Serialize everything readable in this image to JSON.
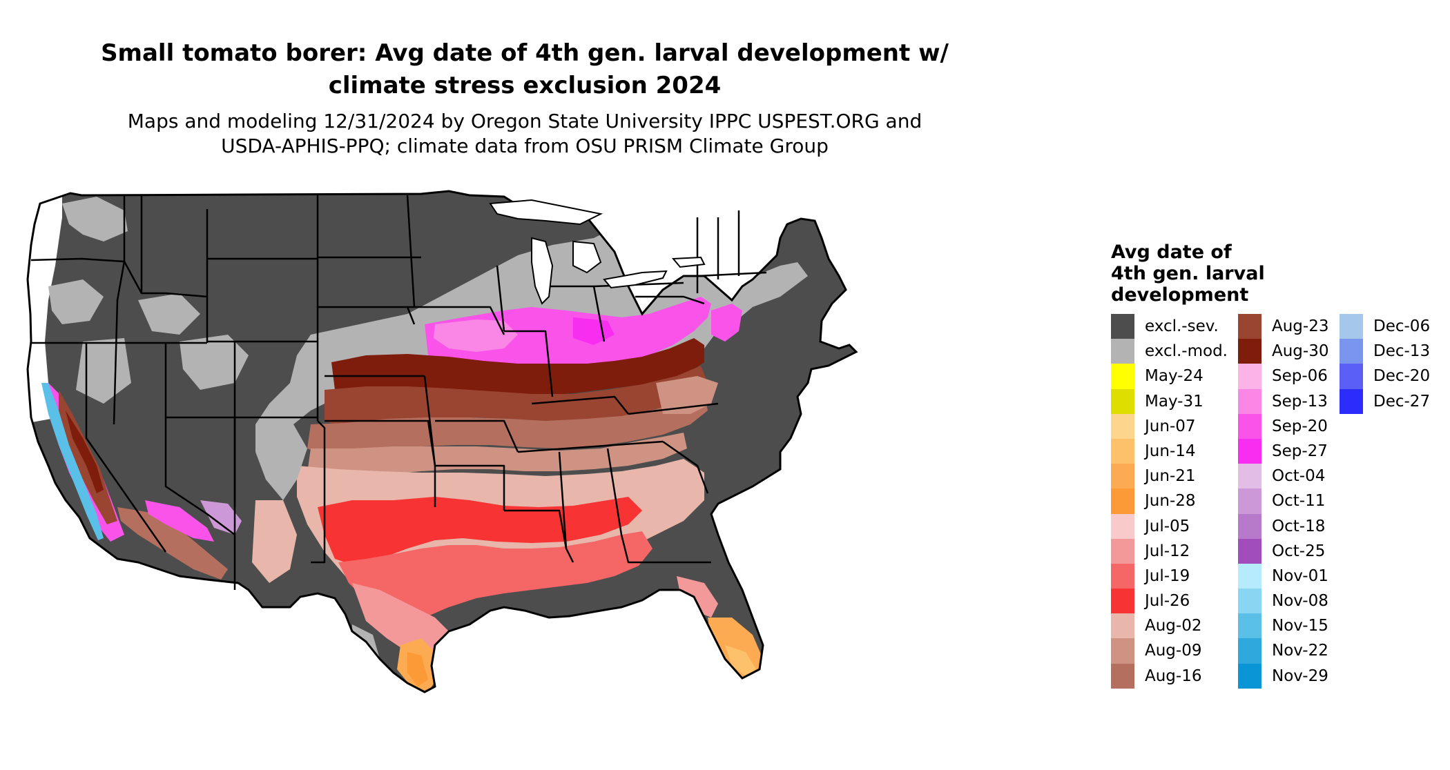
{
  "title_line1": "Small tomato borer: Avg date of 4th gen. larval development w/",
  "title_line2": "climate stress exclusion 2024",
  "subtitle_line1": "Maps and modeling 12/31/2024 by Oregon State University IPPC USPEST.ORG and",
  "subtitle_line2": "USDA-APHIS-PPQ; climate data from OSU PRISM Climate Group",
  "legend": {
    "title_line1": "Avg date of",
    "title_line2": "4th gen. larval",
    "title_line3": "development",
    "columns": [
      [
        {
          "label": "excl.-sev.",
          "color": "#4d4d4d"
        },
        {
          "label": "excl.-mod.",
          "color": "#b3b3b3"
        },
        {
          "label": "May-24",
          "color": "#ffff00"
        },
        {
          "label": "May-31",
          "color": "#dede00"
        },
        {
          "label": "Jun-07",
          "color": "#fdd58d"
        },
        {
          "label": "Jun-14",
          "color": "#fdc16c"
        },
        {
          "label": "Jun-21",
          "color": "#fcab52"
        },
        {
          "label": "Jun-28",
          "color": "#fb9a36"
        },
        {
          "label": "Jul-05",
          "color": "#f8caca"
        },
        {
          "label": "Jul-12",
          "color": "#f49999"
        },
        {
          "label": "Jul-19",
          "color": "#f56666"
        },
        {
          "label": "Jul-26",
          "color": "#f83333"
        },
        {
          "label": "Aug-02",
          "color": "#e8b6ab"
        },
        {
          "label": "Aug-09",
          "color": "#ce9383"
        },
        {
          "label": "Aug-16",
          "color": "#b56f5e"
        }
      ],
      [
        {
          "label": "Aug-23",
          "color": "#9a4432"
        },
        {
          "label": "Aug-30",
          "color": "#7e1d0c"
        },
        {
          "label": "Sep-06",
          "color": "#fcb3e8"
        },
        {
          "label": "Sep-13",
          "color": "#fa86e6"
        },
        {
          "label": "Sep-20",
          "color": "#f953ea"
        },
        {
          "label": "Sep-27",
          "color": "#f72ef0"
        },
        {
          "label": "Oct-04",
          "color": "#e2bde6"
        },
        {
          "label": "Oct-11",
          "color": "#cc98d8"
        },
        {
          "label": "Oct-18",
          "color": "#b77acb"
        },
        {
          "label": "Oct-25",
          "color": "#a14dbc"
        },
        {
          "label": "Nov-01",
          "color": "#b5ebfd"
        },
        {
          "label": "Nov-08",
          "color": "#89d6f2"
        },
        {
          "label": "Nov-15",
          "color": "#5bc0e8"
        },
        {
          "label": "Nov-22",
          "color": "#2fa8de"
        },
        {
          "label": "Nov-29",
          "color": "#0a95d6"
        }
      ],
      [
        {
          "label": "Dec-06",
          "color": "#a5c7ea"
        },
        {
          "label": "Dec-13",
          "color": "#7a95ee"
        },
        {
          "label": "Dec-20",
          "color": "#5a60f5"
        },
        {
          "label": "Dec-27",
          "color": "#2c2cfb"
        }
      ]
    ]
  }
}
